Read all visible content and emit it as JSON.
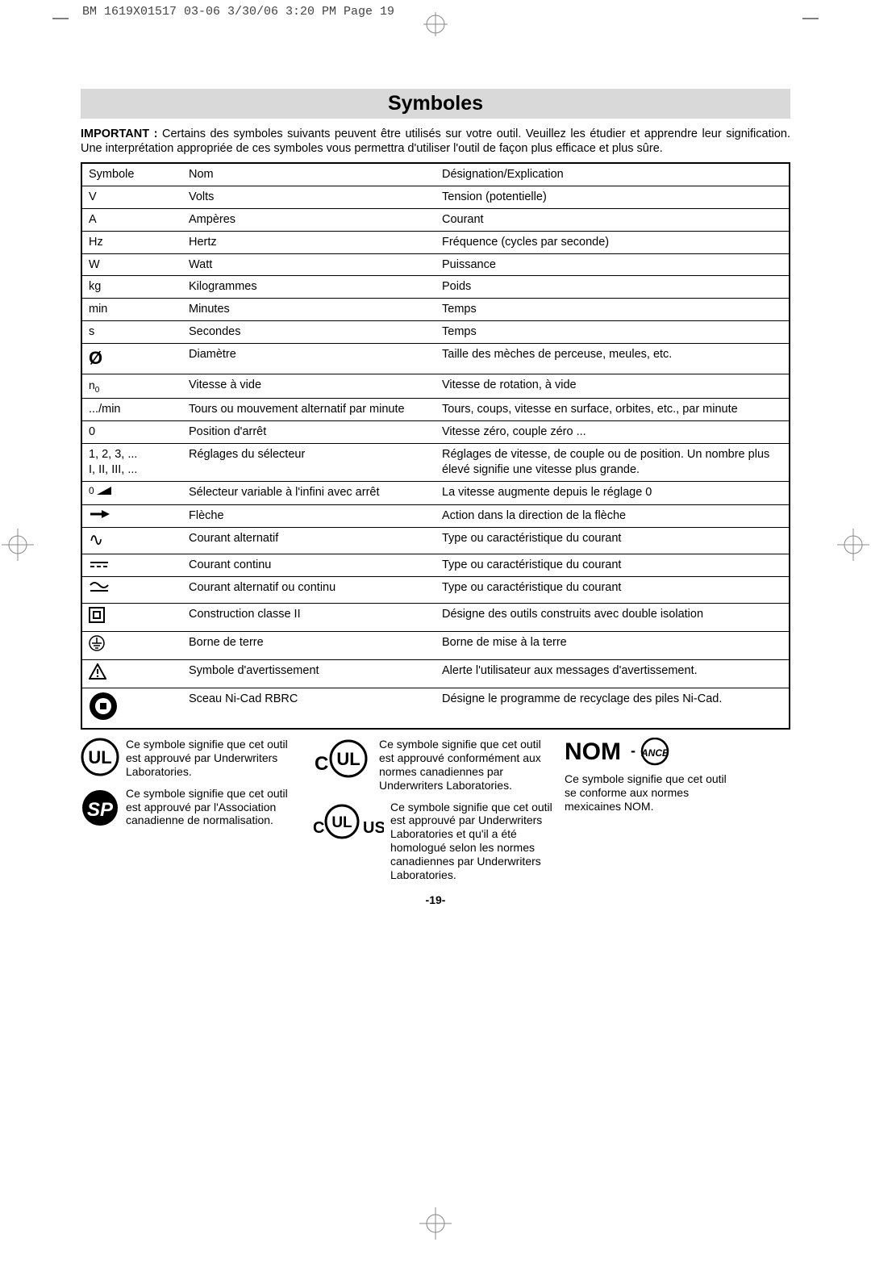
{
  "header": "BM 1619X01517 03-06  3/30/06  3:20 PM  Page 19",
  "title": "Symboles",
  "intro_bold": "IMPORTANT :",
  "intro_rest": " Certains des symboles suivants peuvent être utilisés sur votre outil. Veuillez les étudier et apprendre leur signification. Une interprétation appropriée de ces symboles vous permettra d'utiliser l'outil de façon plus efficace et plus sûre.",
  "table": {
    "rows": [
      {
        "sym": "Symbole",
        "nom": "Nom",
        "des": "Désignation/Explication"
      },
      {
        "sym": "V",
        "nom": "Volts",
        "des": "Tension (potentielle)"
      },
      {
        "sym": "A",
        "nom": "Ampères",
        "des": "Courant"
      },
      {
        "sym": "Hz",
        "nom": "Hertz",
        "des": "Fréquence (cycles par seconde)"
      },
      {
        "sym": "W",
        "nom": "Watt",
        "des": "Puissance"
      },
      {
        "sym": "kg",
        "nom": "Kilogrammes",
        "des": "Poids"
      },
      {
        "sym": "min",
        "nom": "Minutes",
        "des": "Temps"
      },
      {
        "sym": "s",
        "nom": "Secondes",
        "des": "Temps"
      },
      {
        "sym": "⌀",
        "nom": "Diamètre",
        "des": "Taille des mèches de perceuse, meules, etc."
      },
      {
        "sym": "n₀",
        "nom": "Vitesse à vide",
        "des": "Vitesse de rotation, à vide"
      },
      {
        "sym": ".../min",
        "nom": "Tours ou mouvement alternatif par minute",
        "des": "Tours, coups, vitesse en surface, orbites, etc., par minute"
      },
      {
        "sym": "0",
        "nom": "Position d'arrêt",
        "des": "Vitesse zéro, couple zéro ..."
      },
      {
        "sym": "1, 2, 3, ...\nI, II, III, ...",
        "nom": "Réglages du sélecteur",
        "des": "Réglages de vitesse, de couple ou de position. Un nombre plus élevé signifie une vitesse plus grande."
      },
      {
        "sym": "",
        "nom": "Sélecteur variable à l'infini avec arrêt",
        "des": "La vitesse augmente depuis le réglage 0",
        "icon": "selector"
      },
      {
        "sym": "→",
        "nom": "Flèche",
        "des": "Action dans la direction de la flèche",
        "icon": "arrow"
      },
      {
        "sym": "∿",
        "nom": "Courant alternatif",
        "des": "Type ou caractéristique du courant",
        "icon": "ac"
      },
      {
        "sym": "⎓",
        "nom": "Courant continu",
        "des": "Type ou caractéristique du courant",
        "icon": "dc"
      },
      {
        "sym": "",
        "nom": "Courant alternatif ou continu",
        "des": "Type ou caractéristique du courant",
        "icon": "acdc"
      },
      {
        "sym": "",
        "nom": "Construction classe II",
        "des": "Désigne des outils construits avec double isolation",
        "icon": "class2"
      },
      {
        "sym": "⏚",
        "nom": "Borne de terre",
        "des": "Borne de mise à la terre",
        "icon": "earth"
      },
      {
        "sym": "⚠",
        "nom": "Symbole d'avertissement",
        "des": "Alerte l'utilisateur aux messages d'avertissement.",
        "icon": "warning"
      },
      {
        "sym": "",
        "nom": "Sceau Ni-Cad RBRC",
        "des": "Désigne le programme de recyclage des piles Ni-Cad.",
        "icon": "rbrc"
      }
    ]
  },
  "certs": {
    "ul": "Ce symbole signifie que cet outil est approuvé par Underwriters Laboratories.",
    "csa": "Ce symbole signifie que cet outil est approuvé par l'Association canadienne de normalisation.",
    "cul": "Ce symbole signifie que cet outil est approuvé conformément aux normes canadiennes par Underwriters Laboratories.",
    "culus": "Ce symbole signifie que cet outil est approuvé par Underwriters Laboratories et qu'il a été homologué selon les normes canadiennes par Underwriters Laboratories.",
    "nom": "Ce symbole signifie que cet outil se conforme aux normes mexicaines NOM."
  },
  "page_number": "-19-"
}
